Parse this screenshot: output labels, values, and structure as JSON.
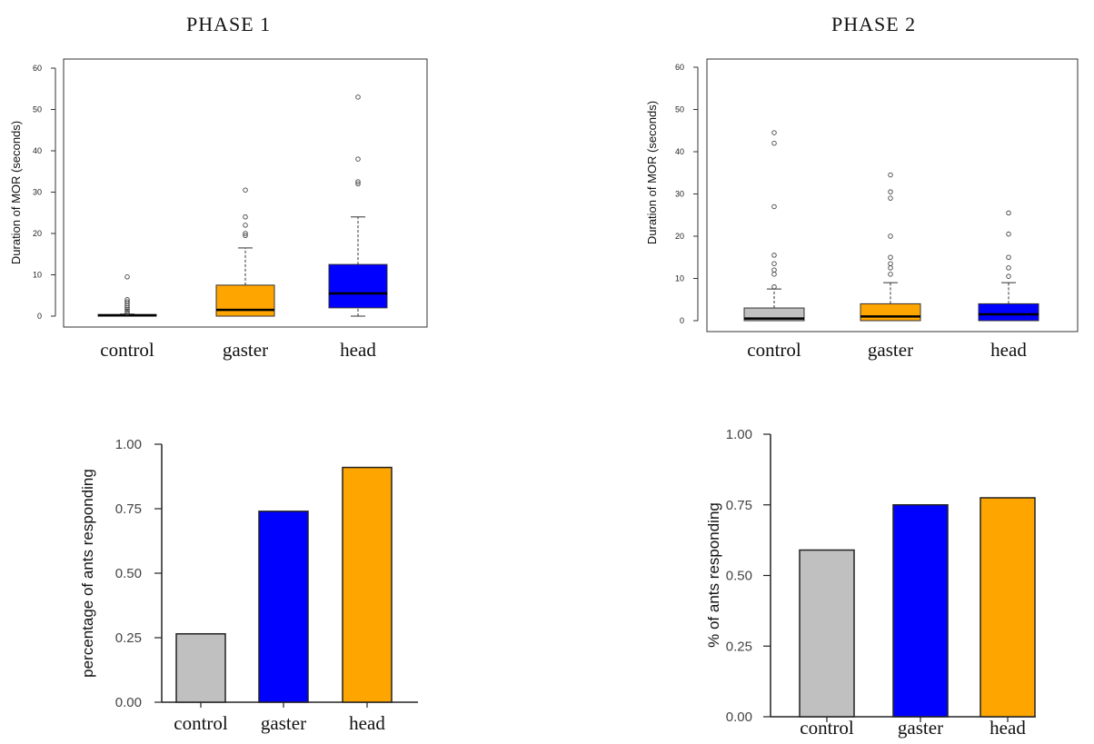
{
  "phases": [
    {
      "title": "PHASE 1"
    },
    {
      "title": "PHASE 2"
    }
  ],
  "colors": {
    "control": "#c0c0c0",
    "gaster_box": "#ffa500",
    "head_box": "#0000ff",
    "gaster_bar": "#0000ff",
    "head_bar": "#ffa500"
  },
  "chart_data": [
    {
      "type": "box",
      "panel": "phase1-box",
      "title": "",
      "ylabel": "Duration of MOR (seconds)",
      "xlabel": "",
      "ylim": [
        0,
        60
      ],
      "yticks": [
        0,
        10,
        20,
        30,
        40,
        50,
        60
      ],
      "categories": [
        "control",
        "gaster",
        "head"
      ],
      "boxes": [
        {
          "name": "control",
          "min": 0,
          "q1": 0,
          "median": 0.2,
          "q3": 0.4,
          "max": 0.5,
          "outliers": [
            0.8,
            1.2,
            1.6,
            2.0,
            2.5,
            3.0,
            3.5,
            4.0,
            9.5
          ]
        },
        {
          "name": "gaster",
          "min": 0,
          "q1": 0,
          "median": 1.5,
          "q3": 7.5,
          "max": 16.5,
          "outliers": [
            19.5,
            20.0,
            22.0,
            24.0,
            30.5
          ]
        },
        {
          "name": "head",
          "min": 0,
          "q1": 2,
          "median": 5.5,
          "q3": 12.5,
          "max": 24,
          "outliers": [
            32.0,
            32.5,
            38.0,
            53.0
          ]
        }
      ]
    },
    {
      "type": "box",
      "panel": "phase2-box",
      "title": "",
      "ylabel": "Duration of MOR (seconds)",
      "xlabel": "",
      "ylim": [
        0,
        60
      ],
      "yticks": [
        0,
        10,
        20,
        30,
        40,
        50,
        60
      ],
      "categories": [
        "control",
        "gaster",
        "head"
      ],
      "boxes": [
        {
          "name": "control",
          "min": 0,
          "q1": 0,
          "median": 0.5,
          "q3": 3,
          "max": 7.5,
          "outliers": [
            8.0,
            11.0,
            12.0,
            13.5,
            15.5,
            27.0,
            42.0,
            44.5
          ]
        },
        {
          "name": "gaster",
          "min": 0,
          "q1": 0,
          "median": 1,
          "q3": 4,
          "max": 9,
          "outliers": [
            11.0,
            12.5,
            13.5,
            15.0,
            20.0,
            29.0,
            30.5,
            34.5
          ]
        },
        {
          "name": "head",
          "min": 0,
          "q1": 0,
          "median": 1.5,
          "q3": 4,
          "max": 9,
          "outliers": [
            10.5,
            12.5,
            15.0,
            20.5,
            25.5
          ]
        }
      ]
    },
    {
      "type": "bar",
      "panel": "phase1-bar",
      "title": "",
      "ylabel": "percentage of ants responding",
      "xlabel": "",
      "ylim": [
        0,
        1
      ],
      "yticks": [
        "0.00",
        "0.25",
        "0.50",
        "0.75",
        "1.00"
      ],
      "categories": [
        "control",
        "gaster",
        "head"
      ],
      "values": [
        0.265,
        0.74,
        0.91
      ]
    },
    {
      "type": "bar",
      "panel": "phase2-bar",
      "title": "",
      "ylabel": "% of ants responding",
      "xlabel": "",
      "ylim": [
        0,
        1
      ],
      "yticks": [
        "0.00",
        "0.25",
        "0.50",
        "0.75",
        "1.00"
      ],
      "categories": [
        "control",
        "gaster",
        "head"
      ],
      "values": [
        0.59,
        0.75,
        0.775
      ]
    }
  ]
}
